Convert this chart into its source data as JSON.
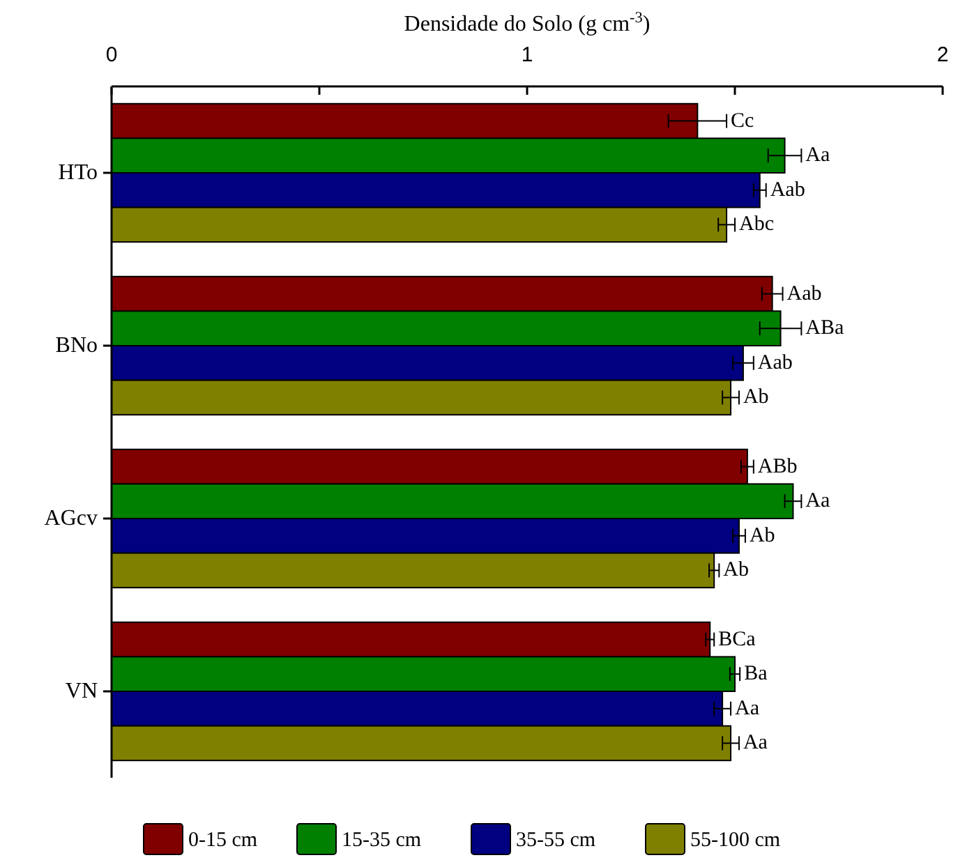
{
  "chart_data": {
    "type": "bar",
    "orientation": "horizontal",
    "xlabel": "Densidade do Solo (g cm$^{-3}$)",
    "categories": [
      "HTo",
      "BNo",
      "AGcv",
      "VN"
    ],
    "xlim": [
      0,
      2
    ],
    "xticks": [
      0,
      {
        "value": 0.5,
        "label": null
      },
      1,
      {
        "value": 1.5,
        "label": null
      },
      2
    ],
    "legend": "bottom",
    "series": [
      {
        "name": "0-15 cm",
        "color": "#800000",
        "values": [
          1.41,
          1.59,
          1.53,
          1.44
        ],
        "errors": [
          0.07,
          0.025,
          0.015,
          0.01
        ],
        "value_labels": [
          "Cc",
          "Aab",
          "ABb",
          "BCa"
        ]
      },
      {
        "name": "15-35 cm",
        "color": "#008000",
        "values": [
          1.62,
          1.61,
          1.64,
          1.5
        ],
        "errors": [
          0.04,
          0.05,
          0.02,
          0.012
        ],
        "value_labels": [
          "Aa",
          "ABa",
          "Aa",
          "Ba"
        ]
      },
      {
        "name": "35-55 cm",
        "color": "#000080",
        "values": [
          1.56,
          1.52,
          1.51,
          1.47
        ],
        "errors": [
          0.015,
          0.025,
          0.015,
          0.02
        ],
        "value_labels": [
          "Aab",
          "Aab",
          "Ab",
          "Aa"
        ]
      },
      {
        "name": "55-100 cm",
        "color": "#808000",
        "values": [
          1.48,
          1.49,
          1.45,
          1.49
        ],
        "errors": [
          0.02,
          0.02,
          0.012,
          0.02
        ],
        "value_labels": [
          "Abc",
          "Ab",
          "Ab",
          "Aa"
        ]
      }
    ]
  }
}
